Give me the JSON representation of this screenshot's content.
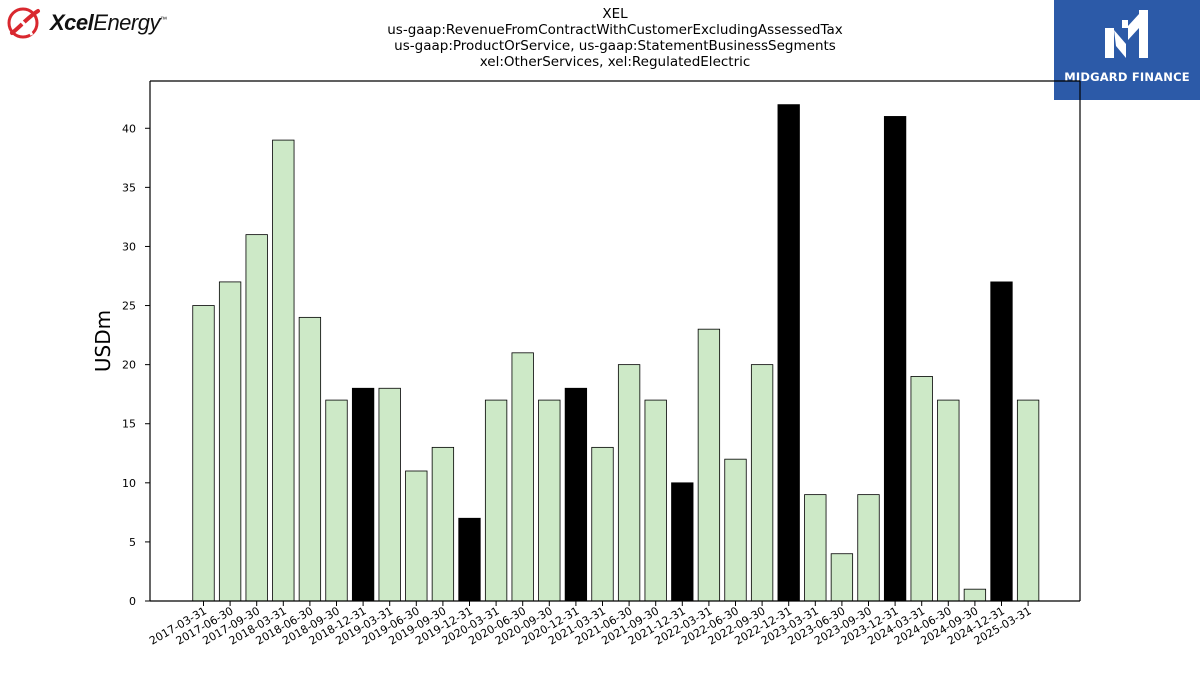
{
  "logos": {
    "left_brand_bold": "Xcel",
    "left_brand_regular": "Energy",
    "left_brand_mark": "™",
    "left_icon": "xcel-swoosh-icon",
    "right_text": "MIDGARD FINANCE",
    "right_icon": "midgard-m-icon",
    "right_bg": "#2c5aa8"
  },
  "chart_data": {
    "type": "bar",
    "title_lines": [
      "XEL",
      "us-gaap:RevenueFromContractWithCustomerExcludingAssessedTax",
      "us-gaap:ProductOrService, us-gaap:StatementBusinessSegments",
      "xel:OtherServices, xel:RegulatedElectric"
    ],
    "ylabel": "USDm",
    "xlabel": "",
    "ylim": [
      0,
      44
    ],
    "yticks": [
      0,
      5,
      10,
      15,
      20,
      25,
      30,
      35,
      40
    ],
    "grid": false,
    "legend": "none",
    "colors": {
      "default": "#cde9c7",
      "highlight": "#000000",
      "edge": "#000000"
    },
    "categories": [
      "2017-03-31",
      "2017-06-30",
      "2017-09-30",
      "2018-03-31",
      "2018-06-30",
      "2018-09-30",
      "2018-12-31",
      "2019-03-31",
      "2019-06-30",
      "2019-09-30",
      "2019-12-31",
      "2020-03-31",
      "2020-06-30",
      "2020-09-30",
      "2020-12-31",
      "2021-03-31",
      "2021-06-30",
      "2021-09-30",
      "2021-12-31",
      "2022-03-31",
      "2022-06-30",
      "2022-09-30",
      "2022-12-31",
      "2023-03-31",
      "2023-06-30",
      "2023-09-30",
      "2023-12-31",
      "2024-03-31",
      "2024-06-30",
      "2024-09-30",
      "2024-12-31",
      "2025-03-31"
    ],
    "values": [
      25,
      27,
      31,
      39,
      24,
      17,
      18,
      18,
      11,
      13,
      7,
      17,
      21,
      17,
      18,
      13,
      20,
      17,
      10,
      23,
      12,
      20,
      42,
      9,
      4,
      9,
      41,
      19,
      17,
      1,
      27,
      17
    ],
    "highlight": [
      false,
      false,
      false,
      false,
      false,
      false,
      true,
      false,
      false,
      false,
      true,
      false,
      false,
      false,
      true,
      false,
      false,
      false,
      true,
      false,
      false,
      false,
      true,
      false,
      false,
      false,
      true,
      false,
      false,
      false,
      true,
      false
    ]
  }
}
